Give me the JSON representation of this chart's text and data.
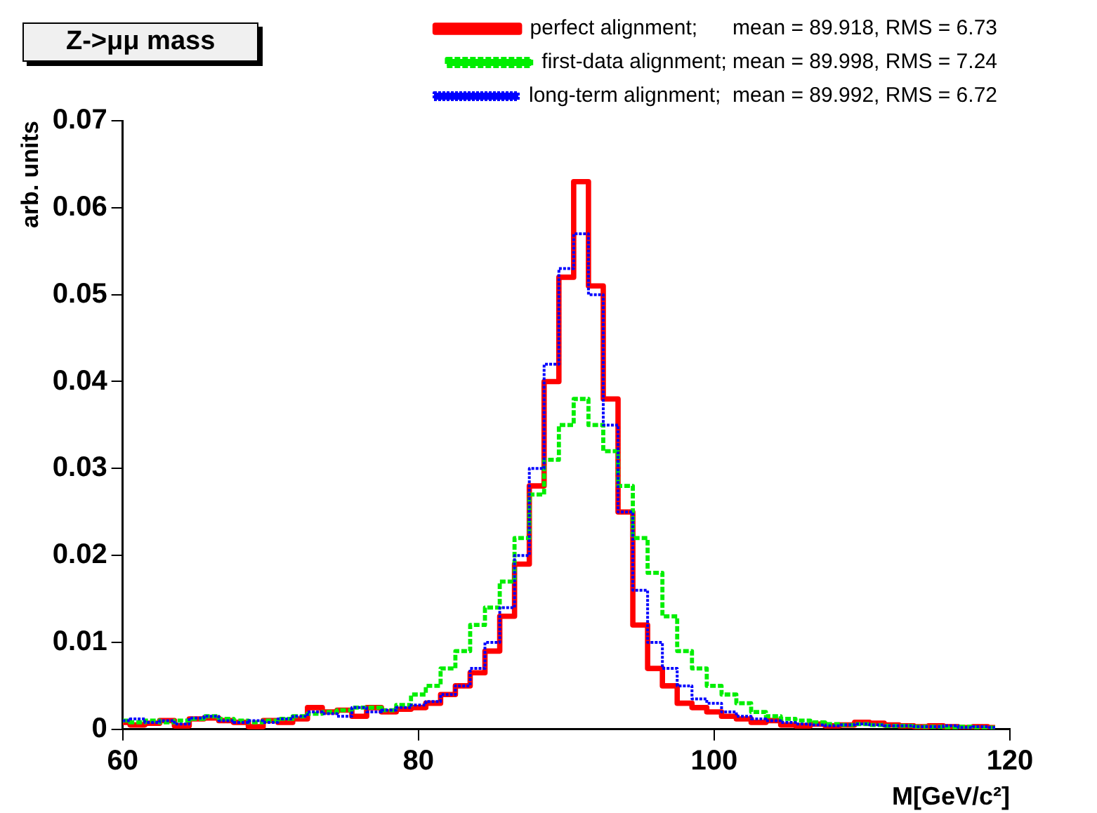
{
  "chart_data": {
    "type": "step",
    "title": "Z->μμ mass",
    "xlabel": "M[GeV/c²]",
    "ylabel": "arb. units",
    "x": [
      60,
      61,
      62,
      63,
      64,
      65,
      66,
      67,
      68,
      69,
      70,
      71,
      72,
      73,
      74,
      75,
      76,
      77,
      78,
      79,
      80,
      81,
      82,
      83,
      84,
      85,
      86,
      87,
      88,
      89,
      90,
      91,
      92,
      93,
      94,
      95,
      96,
      97,
      98,
      99,
      100,
      101,
      102,
      103,
      104,
      105,
      106,
      107,
      108,
      109,
      110,
      111,
      112,
      113,
      114,
      115,
      116,
      117,
      118,
      119
    ],
    "series": [
      {
        "name": "perfect alignment;      mean = 89.918, RMS = 6.73",
        "color": "#ff0000",
        "line_style": "solid",
        "values": [
          0.0008,
          0.0005,
          0.0007,
          0.001,
          0.0004,
          0.0012,
          0.0013,
          0.001,
          0.0008,
          0.0003,
          0.001,
          0.0008,
          0.0012,
          0.0025,
          0.002,
          0.0022,
          0.0015,
          0.0025,
          0.002,
          0.0023,
          0.0025,
          0.003,
          0.004,
          0.005,
          0.0065,
          0.009,
          0.013,
          0.019,
          0.028,
          0.04,
          0.052,
          0.063,
          0.051,
          0.038,
          0.025,
          0.012,
          0.007,
          0.005,
          0.003,
          0.0025,
          0.002,
          0.0015,
          0.0012,
          0.0008,
          0.001,
          0.0005,
          0.0004,
          0.0006,
          0.0004,
          0.0005,
          0.0008,
          0.0007,
          0.0005,
          0.0004,
          0.0003,
          0.0004,
          0.0003,
          0.0002,
          0.0003,
          0.0002
        ]
      },
      {
        "name": "first-data alignment; mean = 89.998, RMS = 7.24",
        "color": "#00ee00",
        "line_style": "dashed",
        "values": [
          0.001,
          0.0008,
          0.001,
          0.0008,
          0.001,
          0.0012,
          0.0015,
          0.0012,
          0.001,
          0.0008,
          0.001,
          0.0012,
          0.0015,
          0.0018,
          0.002,
          0.0022,
          0.0025,
          0.0025,
          0.0022,
          0.0028,
          0.004,
          0.005,
          0.007,
          0.009,
          0.012,
          0.014,
          0.017,
          0.022,
          0.027,
          0.031,
          0.035,
          0.038,
          0.035,
          0.032,
          0.028,
          0.022,
          0.018,
          0.013,
          0.009,
          0.007,
          0.005,
          0.004,
          0.003,
          0.002,
          0.0015,
          0.0012,
          0.001,
          0.0008,
          0.0006,
          0.0005,
          0.0006,
          0.0005,
          0.0004,
          0.0004,
          0.0003,
          0.0003,
          0.0002,
          0.0003,
          0.0002,
          0.0002
        ]
      },
      {
        "name": "long-term alignment;  mean = 89.992, RMS = 6.72",
        "color": "#0000ff",
        "line_style": "dotted",
        "values": [
          0.001,
          0.0012,
          0.0008,
          0.001,
          0.0006,
          0.0013,
          0.0015,
          0.001,
          0.0008,
          0.001,
          0.0008,
          0.0012,
          0.0015,
          0.002,
          0.0018,
          0.0015,
          0.0025,
          0.002,
          0.0022,
          0.0025,
          0.0028,
          0.0032,
          0.004,
          0.005,
          0.007,
          0.01,
          0.014,
          0.02,
          0.03,
          0.042,
          0.053,
          0.057,
          0.05,
          0.035,
          0.025,
          0.016,
          0.01,
          0.007,
          0.005,
          0.0035,
          0.003,
          0.002,
          0.0015,
          0.0012,
          0.001,
          0.0008,
          0.0006,
          0.0005,
          0.0004,
          0.0005,
          0.0006,
          0.0005,
          0.0004,
          0.0004,
          0.0003,
          0.0003,
          0.0004,
          0.0002,
          0.0003,
          0.0002
        ]
      }
    ],
    "xlim": [
      60,
      120
    ],
    "xticks": [
      60,
      80,
      100,
      120
    ],
    "ylim": [
      0,
      0.07
    ],
    "yticks": [
      0,
      0.01,
      0.02,
      0.03,
      0.04,
      0.05,
      0.06,
      0.07
    ],
    "grid": false,
    "legend": "top right"
  }
}
